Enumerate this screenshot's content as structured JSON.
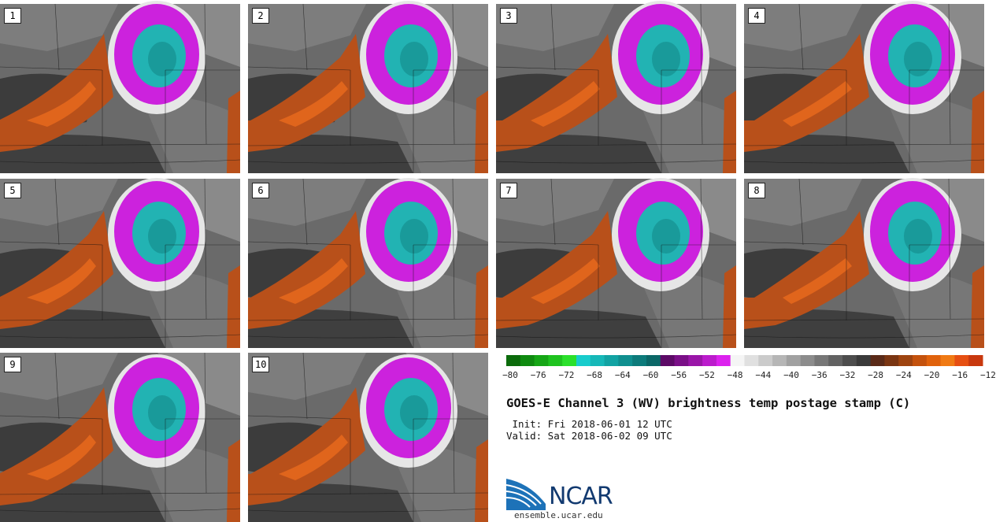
{
  "panels": [
    "1",
    "2",
    "3",
    "4",
    "5",
    "6",
    "7",
    "8",
    "9",
    "10"
  ],
  "colorbar": {
    "colors": [
      "#0b6b0b",
      "#0f8a10",
      "#16a616",
      "#1fc31f",
      "#2be02b",
      "#18cccc",
      "#16b8b8",
      "#12a3a3",
      "#108f8f",
      "#0d7b7b",
      "#0b6767",
      "#5c0a66",
      "#7a0f87",
      "#9a16a8",
      "#bb1ccc",
      "#dc22ee",
      "#f5f5f5",
      "#e0e0e0",
      "#cbcbcb",
      "#b6b6b6",
      "#a1a1a1",
      "#8c8c8c",
      "#777777",
      "#626262",
      "#4d4d4d",
      "#3a3a3a",
      "#5a2a18",
      "#7a3512",
      "#9e4410",
      "#c4520d",
      "#e0620c",
      "#f07a14",
      "#e64f12",
      "#c8380e"
    ],
    "ticks": [
      "−80",
      "−76",
      "−72",
      "−68",
      "−64",
      "−60",
      "−56",
      "−52",
      "−48",
      "−44",
      "−40",
      "−36",
      "−32",
      "−28",
      "−24",
      "−20",
      "−16",
      "−12"
    ]
  },
  "title": "GOES-E Channel 3 (WV) brightness temp postage stamp (C)",
  "init": " Init: Fri 2018-06-01 12 UTC",
  "valid": "Valid: Sat 2018-06-02 09 UTC",
  "logo": {
    "text": "NCAR",
    "url": "ensemble.ucar.edu"
  },
  "colors": {
    "cold_core": "#22b3b3",
    "magenta": "#cc22dd",
    "orange": "#b8501a",
    "bright_orange": "#e0651c",
    "dark_gray": "#3c3c3c"
  }
}
